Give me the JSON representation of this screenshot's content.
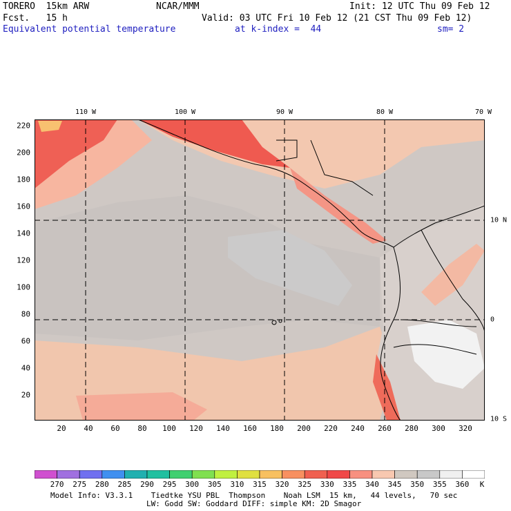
{
  "header": {
    "model": "TORERO  15km ARW",
    "org": "NCAR/MMM",
    "init": "Init: 12 UTC Thu 09 Feb 12",
    "fcst": "Fcst.   15 h",
    "valid": "Valid: 03 UTC Fri 10 Feb 12 (21 CST Thu 09 Feb 12)",
    "field": "Equivalent potential temperature",
    "level": "at k-index =  44",
    "smooth": "sm= 2"
  },
  "map": {
    "lon_labels": [
      "110 W",
      "100 W",
      "90 W",
      "80 W",
      "70 W"
    ],
    "lat_labels": [
      "10 N",
      "0",
      "10 S"
    ],
    "x_ticks": [
      "20",
      "40",
      "60",
      "80",
      "100",
      "120",
      "140",
      "160",
      "180",
      "200",
      "220",
      "240",
      "260",
      "280",
      "300",
      "320"
    ],
    "y_ticks": [
      "220",
      "200",
      "180",
      "160",
      "140",
      "120",
      "100",
      "80",
      "60",
      "40",
      "20"
    ]
  },
  "colorbar": {
    "labels": [
      "270",
      "275",
      "280",
      "285",
      "290",
      "295",
      "300",
      "305",
      "310",
      "315",
      "320",
      "325",
      "330",
      "335",
      "340",
      "345",
      "350",
      "355",
      "360"
    ],
    "unit": "K",
    "colors": [
      "#d050d0",
      "#a070e0",
      "#7070f0",
      "#4090f0",
      "#20b0b0",
      "#20c0a0",
      "#40d070",
      "#80e050",
      "#c0f040",
      "#e0e040",
      "#f8c060",
      "#f89060",
      "#f06050",
      "#f04848",
      "#f89080",
      "#f8c8b0",
      "#d0c8c0",
      "#c8c8c8",
      "#f0f0f0",
      "#ffffff"
    ]
  },
  "footer": {
    "line1": "Model Info: V3.3.1    Tiedtke YSU PBL  Thompson    Noah LSM  15 km,   44 levels,   70 sec",
    "line2": "LW: Godd SW: Goddard DIFF: simple KM: 2D Smagor"
  }
}
